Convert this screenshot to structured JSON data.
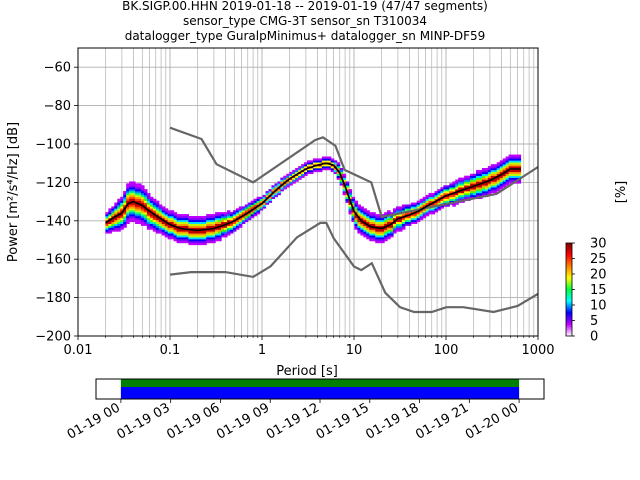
{
  "title_lines": [
    "BK.SIGP.00.HHN   2019-01-18 -- 2019-01-19  (47/47 segments)",
    "sensor_type CMG-3T sensor_sn T310034",
    "datalogger_type GuralpMinimus+ datalogger_sn MINP-DF59"
  ],
  "chart_data": {
    "type": "heatmap",
    "xlabel": "Period [s]",
    "ylabel": "Power [m²/s⁴/Hz] [dB]",
    "xscale": "log",
    "xlim": [
      0.01,
      1000
    ],
    "ylim": [
      -200,
      -50
    ],
    "x_ticks": [
      {
        "value": 0.01,
        "label": "0.01"
      },
      {
        "value": 0.1,
        "label": "0.1"
      },
      {
        "value": 1,
        "label": "1"
      },
      {
        "value": 10,
        "label": "10"
      },
      {
        "value": 100,
        "label": "100"
      },
      {
        "value": 1000,
        "label": "1000"
      }
    ],
    "y_ticks": [
      -200,
      -180,
      -160,
      -140,
      -120,
      -100,
      -80,
      -60
    ],
    "grid": true,
    "colorbar": {
      "label": "[%]",
      "ticks": [
        0,
        5,
        10,
        15,
        20,
        25,
        30
      ],
      "range": [
        0,
        30
      ],
      "colors": [
        "#ffffff",
        "#c000ff",
        "#0000ff",
        "#00ffff",
        "#00ff40",
        "#ffff00",
        "#ff8000",
        "#ff0000",
        "#800000"
      ]
    },
    "nhnm": [
      [
        0.1,
        -91.5
      ],
      [
        0.22,
        -97.4
      ],
      [
        0.32,
        -110.5
      ],
      [
        0.8,
        -120
      ],
      [
        3.8,
        -97.9
      ],
      [
        4.6,
        -96.5
      ],
      [
        6.3,
        -101
      ],
      [
        7.9,
        -113.5
      ],
      [
        15.4,
        -120
      ],
      [
        20,
        -138
      ],
      [
        354.8,
        -126
      ],
      [
        1000,
        -112
      ]
    ],
    "nlnm": [
      [
        0.1,
        -168
      ],
      [
        0.17,
        -166.7
      ],
      [
        0.4,
        -166.7
      ],
      [
        0.8,
        -169.2
      ],
      [
        1.24,
        -163.7
      ],
      [
        2.4,
        -148.6
      ],
      [
        4.3,
        -141.1
      ],
      [
        5,
        -141.1
      ],
      [
        6,
        -149
      ],
      [
        10,
        -163.8
      ],
      [
        12,
        -165.7
      ],
      [
        15.6,
        -162.1
      ],
      [
        21.9,
        -177.5
      ],
      [
        31.6,
        -185
      ],
      [
        45,
        -187.5
      ],
      [
        70,
        -187.5
      ],
      [
        101,
        -185
      ],
      [
        154,
        -185
      ],
      [
        328,
        -187.5
      ],
      [
        600,
        -184.4
      ],
      [
        1000,
        -178
      ]
    ],
    "mode": [
      [
        0.02,
        -141
      ],
      [
        0.025,
        -138
      ],
      [
        0.03,
        -136
      ],
      [
        0.035,
        -131
      ],
      [
        0.04,
        -130
      ],
      [
        0.05,
        -132
      ],
      [
        0.06,
        -135
      ],
      [
        0.08,
        -139
      ],
      [
        0.1,
        -142
      ],
      [
        0.13,
        -144
      ],
      [
        0.2,
        -145
      ],
      [
        0.3,
        -144
      ],
      [
        0.4,
        -142
      ],
      [
        0.5,
        -140
      ],
      [
        0.7,
        -136
      ],
      [
        1,
        -131
      ],
      [
        1.5,
        -123
      ],
      [
        2,
        -118
      ],
      [
        3,
        -113
      ],
      [
        4,
        -111
      ],
      [
        5,
        -110
      ],
      [
        6,
        -111
      ],
      [
        7,
        -115
      ],
      [
        8,
        -122
      ],
      [
        9,
        -129
      ],
      [
        10,
        -135
      ],
      [
        12,
        -140
      ],
      [
        15,
        -143
      ],
      [
        20,
        -144
      ],
      [
        25,
        -142
      ],
      [
        30,
        -139
      ],
      [
        40,
        -137
      ],
      [
        50,
        -135
      ],
      [
        70,
        -131
      ],
      [
        100,
        -127
      ],
      [
        150,
        -124
      ],
      [
        200,
        -122
      ],
      [
        300,
        -119
      ],
      [
        400,
        -116
      ],
      [
        500,
        -113
      ],
      [
        650,
        -113
      ]
    ],
    "spread": [
      [
        0.02,
        2
      ],
      [
        0.035,
        4
      ],
      [
        0.05,
        4
      ],
      [
        0.08,
        3
      ],
      [
        0.15,
        3
      ],
      [
        0.3,
        3
      ],
      [
        0.6,
        2
      ],
      [
        1,
        1.5
      ],
      [
        3,
        1.2
      ],
      [
        6,
        1.2
      ],
      [
        9,
        2.5
      ],
      [
        12,
        3
      ],
      [
        20,
        3
      ],
      [
        30,
        2.5
      ],
      [
        60,
        2
      ],
      [
        150,
        2.5
      ],
      [
        300,
        3
      ],
      [
        650,
        3
      ]
    ]
  },
  "time_axis": {
    "tick_labels": [
      "01-19 00",
      "01-19 03",
      "01-19 06",
      "01-19 09",
      "01-19 12",
      "01-19 15",
      "01-19 18",
      "01-19 21",
      "01-20 00"
    ],
    "range_hours": [
      -1.5,
      25.5
    ],
    "coverage_hours": [
      0,
      24
    ],
    "coverage_colors": [
      "#008000",
      "#0000ff"
    ]
  }
}
